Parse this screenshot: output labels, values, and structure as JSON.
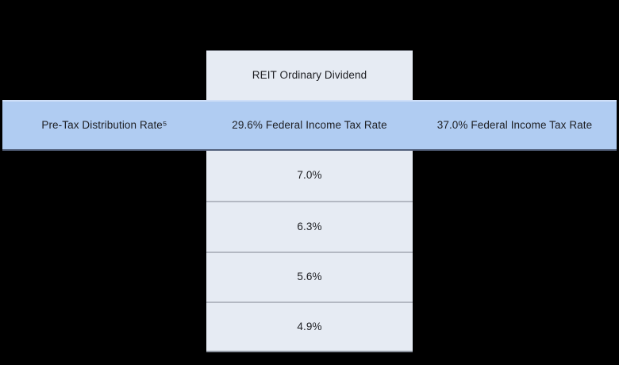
{
  "chart_data": {
    "type": "table",
    "column_group_header": "REIT Ordinary Dividend",
    "header_row": {
      "left": "Pre-Tax Distribution Rate⁵",
      "mid": "29.6% Federal Income Tax Rate",
      "right": "37.0% Federal Income Tax Rate"
    },
    "rows": [
      {
        "mid": "7.0%"
      },
      {
        "mid": "6.3%"
      },
      {
        "mid": "5.6%"
      },
      {
        "mid": "4.9%"
      }
    ],
    "layout_hints": {
      "highlight_row_spans_full_width": true,
      "only_middle_column_filled_below_header": true
    }
  },
  "colors": {
    "page_background": "#000000",
    "highlight_row_fill": "#b0ccf2",
    "middle_column_fill": "#e6ebf3",
    "row_divider": "#b3b8c2",
    "text": "#1d1e22"
  }
}
